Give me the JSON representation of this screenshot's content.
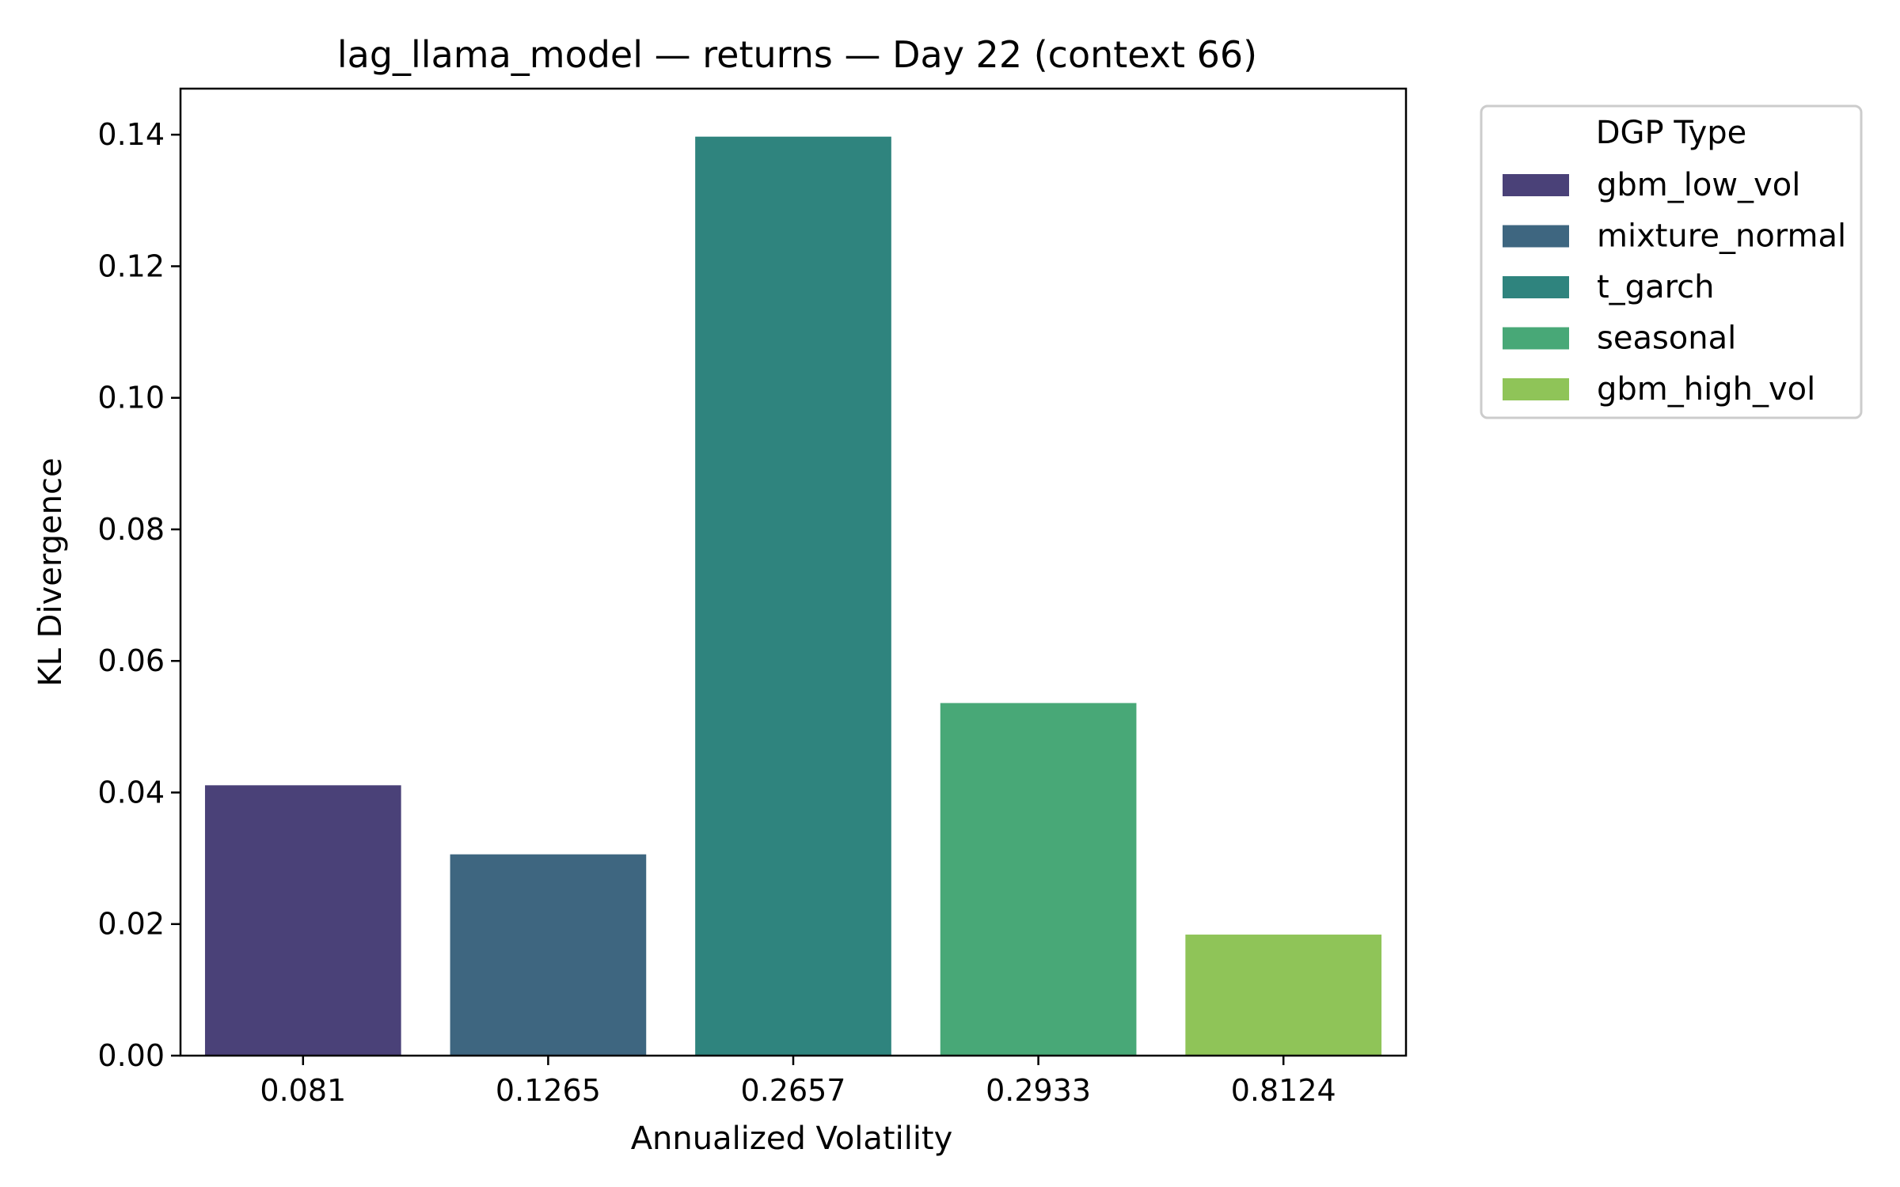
{
  "chart_data": {
    "type": "bar",
    "title": "lag_llama_model — returns — Day 22 (context 66)",
    "xlabel": "Annualized Volatility",
    "ylabel": "KL Divergence",
    "categories": [
      "0.081",
      "0.1265",
      "0.2657",
      "0.2933",
      "0.8124"
    ],
    "values": [
      0.0411,
      0.0306,
      0.1397,
      0.0536,
      0.0184
    ],
    "series_names": [
      "gbm_low_vol",
      "mixture_normal",
      "t_garch",
      "seasonal",
      "gbm_high_vol"
    ],
    "colors": [
      "#4a4178",
      "#3e6680",
      "#2f847e",
      "#48a877",
      "#8fc458"
    ],
    "ylim": [
      0,
      0.147
    ],
    "yticks": [
      0.0,
      0.02,
      0.04,
      0.06,
      0.08,
      0.1,
      0.12,
      0.14
    ],
    "ytick_labels": [
      "0.00",
      "0.02",
      "0.04",
      "0.06",
      "0.08",
      "0.10",
      "0.12",
      "0.14"
    ],
    "grid": false,
    "legend": {
      "title": "DGP Type",
      "placement": "outside-right-top",
      "entries": [
        "gbm_low_vol",
        "mixture_normal",
        "t_garch",
        "seasonal",
        "gbm_high_vol"
      ]
    }
  }
}
